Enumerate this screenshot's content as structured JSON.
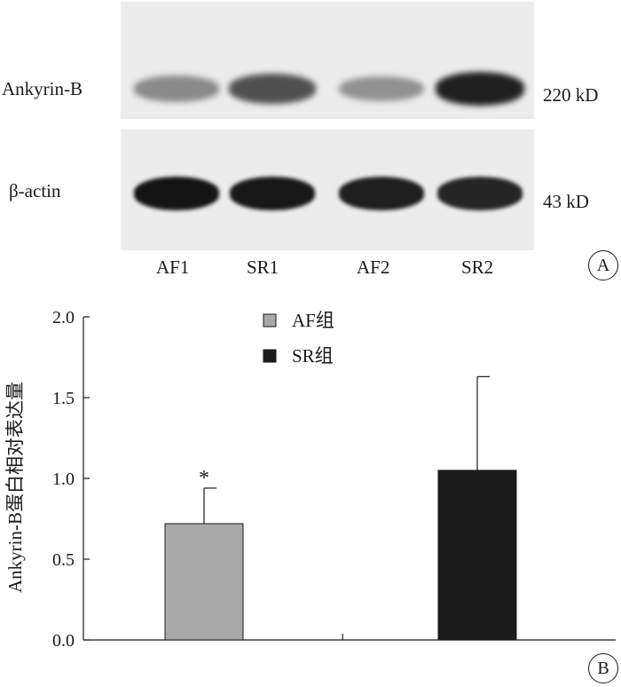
{
  "panel_a": {
    "marker": "A",
    "rows": [
      {
        "protein": "Ankyrin-B",
        "size": "220 kD"
      },
      {
        "protein": "β-actin",
        "size": "43 kD"
      }
    ],
    "lanes": [
      "AF1",
      "SR1",
      "AF2",
      "SR2"
    ],
    "band_intensity": {
      "Ankyrin-B": [
        0.45,
        0.72,
        0.42,
        0.95
      ],
      "β-actin": [
        1.0,
        0.98,
        0.95,
        0.92
      ]
    }
  },
  "panel_b": {
    "marker": "B"
  },
  "colors": {
    "af": "#a9a9a9",
    "sr": "#1c1c1c",
    "axis": "#1a1a1a"
  },
  "chart_data": {
    "type": "bar",
    "categories": [
      "AF组",
      "SR组"
    ],
    "values": [
      0.72,
      1.05
    ],
    "errors": [
      0.22,
      0.58
    ],
    "annotations": [
      "*",
      ""
    ],
    "legend": [
      "AF组",
      "SR组"
    ],
    "legend_position": "top-center",
    "ylabel": "Ankyrin-B蛋白相对表达量",
    "xlabel": "",
    "ylim": [
      0,
      2.0
    ],
    "yticks": [
      "0.0",
      "0.5",
      "1.0",
      "1.5",
      "2.0"
    ],
    "grid": false
  }
}
